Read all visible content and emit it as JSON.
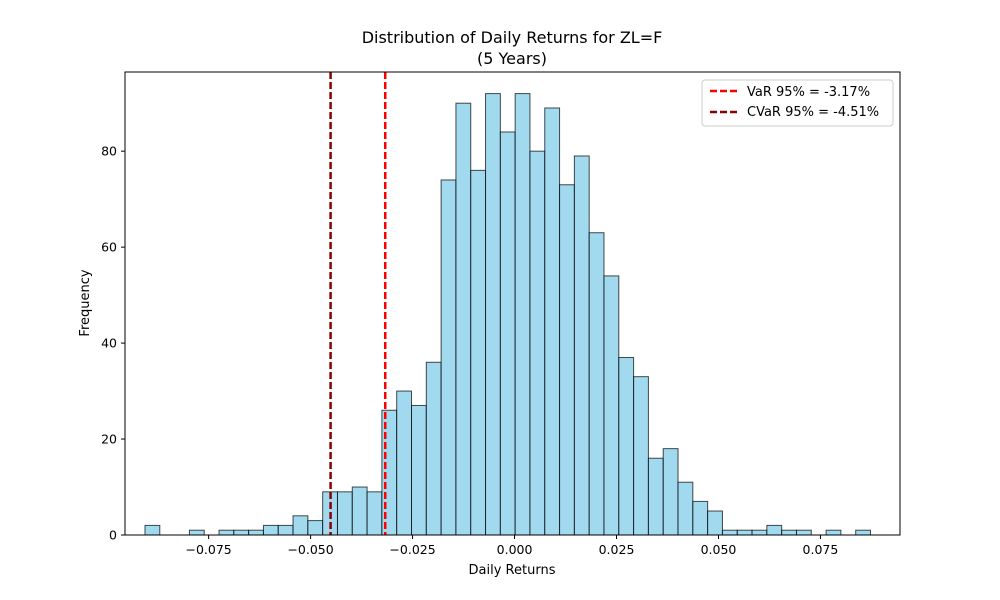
{
  "chart_data": {
    "type": "bar",
    "title": "Distribution of Daily Returns for ZL=F",
    "subtitle": "(5 Years)",
    "xlabel": "Daily Returns",
    "ylabel": "Frequency",
    "xlim": [
      -0.0955,
      0.0945
    ],
    "ylim": [
      0,
      96.5
    ],
    "x_ticks": [
      {
        "value": -0.075,
        "label": "−0.075"
      },
      {
        "value": -0.05,
        "label": "−0.050"
      },
      {
        "value": -0.025,
        "label": "−0.025"
      },
      {
        "value": 0.0,
        "label": "0.000"
      },
      {
        "value": 0.025,
        "label": "0.025"
      },
      {
        "value": 0.05,
        "label": "0.050"
      },
      {
        "value": 0.075,
        "label": "0.075"
      }
    ],
    "y_ticks": [
      {
        "value": 0,
        "label": "0"
      },
      {
        "value": 20,
        "label": "20"
      },
      {
        "value": 40,
        "label": "40"
      },
      {
        "value": 60,
        "label": "60"
      },
      {
        "value": 80,
        "label": "80"
      }
    ],
    "bin_start": -0.0906,
    "bin_width": 0.00363,
    "counts": [
      2,
      0,
      0,
      1,
      0,
      1,
      1,
      1,
      2,
      2,
      4,
      3,
      9,
      9,
      10,
      9,
      26,
      30,
      27,
      36,
      74,
      90,
      76,
      92,
      84,
      92,
      80,
      89,
      73,
      79,
      63,
      54,
      37,
      33,
      16,
      18,
      11,
      7,
      5,
      1,
      1,
      1,
      2,
      1,
      1,
      0,
      1,
      0,
      1
    ],
    "bar_color": "#87ceeb",
    "bar_edge_color": "#000000",
    "grid": false,
    "legend_position": "top-right",
    "lines": [
      {
        "label": "VaR 95% = -3.17%",
        "x": -0.0317,
        "color": "#ff0000"
      },
      {
        "label": "CVaR 95% = -4.51%",
        "x": -0.0451,
        "color": "#8b0000"
      }
    ]
  }
}
